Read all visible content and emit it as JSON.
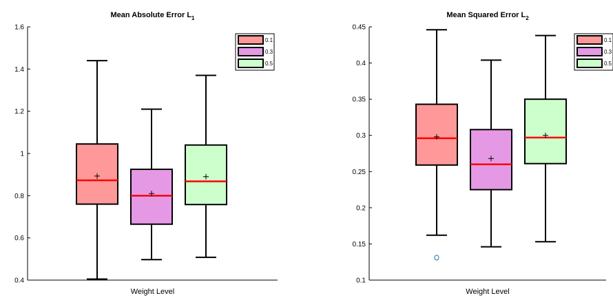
{
  "chart_data": [
    {
      "type": "box",
      "title": "Mean Absolute Error L",
      "title_subscript": "1",
      "xlabel": "Weight Level",
      "ylabel": "",
      "ylim": [
        0.4,
        1.6
      ],
      "yticks": [
        "0.4",
        "0.6",
        "0.8",
        "1",
        "1.2",
        "1.4",
        "1.6"
      ],
      "grid": false,
      "legend_position": "top-right",
      "series": [
        {
          "name": "0.1",
          "color": "#ff9999",
          "whisker_low": 0.405,
          "q1": 0.76,
          "median": 0.873,
          "q3": 1.045,
          "whisker_high": 1.44,
          "mean": 0.893,
          "outliers": []
        },
        {
          "name": "0.3",
          "color": "#e599e5",
          "whisker_low": 0.497,
          "q1": 0.665,
          "median": 0.8,
          "q3": 0.925,
          "whisker_high": 1.21,
          "mean": 0.81,
          "outliers": []
        },
        {
          "name": "0.5",
          "color": "#ccffcc",
          "whisker_low": 0.508,
          "q1": 0.758,
          "median": 0.868,
          "q3": 1.04,
          "whisker_high": 1.37,
          "mean": 0.89,
          "outliers": []
        }
      ]
    },
    {
      "type": "box",
      "title": "Mean Squared Error L",
      "title_subscript": "2",
      "xlabel": "Weight Level",
      "ylabel": "",
      "ylim": [
        0.1,
        0.45
      ],
      "yticks": [
        "0.1",
        "0.15",
        "0.2",
        "0.25",
        "0.3",
        "0.35",
        "0.4",
        "0.45"
      ],
      "grid": false,
      "legend_position": "top-right",
      "series": [
        {
          "name": "0.1",
          "color": "#ff9999",
          "whisker_low": 0.162,
          "q1": 0.259,
          "median": 0.296,
          "q3": 0.343,
          "whisker_high": 0.446,
          "mean": 0.298,
          "outliers": [
            0.131
          ]
        },
        {
          "name": "0.3",
          "color": "#e599e5",
          "whisker_low": 0.146,
          "q1": 0.225,
          "median": 0.26,
          "q3": 0.308,
          "whisker_high": 0.404,
          "mean": 0.268,
          "outliers": []
        },
        {
          "name": "0.5",
          "color": "#ccffcc",
          "whisker_low": 0.153,
          "q1": 0.261,
          "median": 0.297,
          "q3": 0.35,
          "whisker_high": 0.438,
          "mean": 0.3,
          "outliers": []
        }
      ]
    }
  ],
  "colors": {
    "median": "#ff0000",
    "outlier": "#1f77b4",
    "axis": "#000000"
  }
}
